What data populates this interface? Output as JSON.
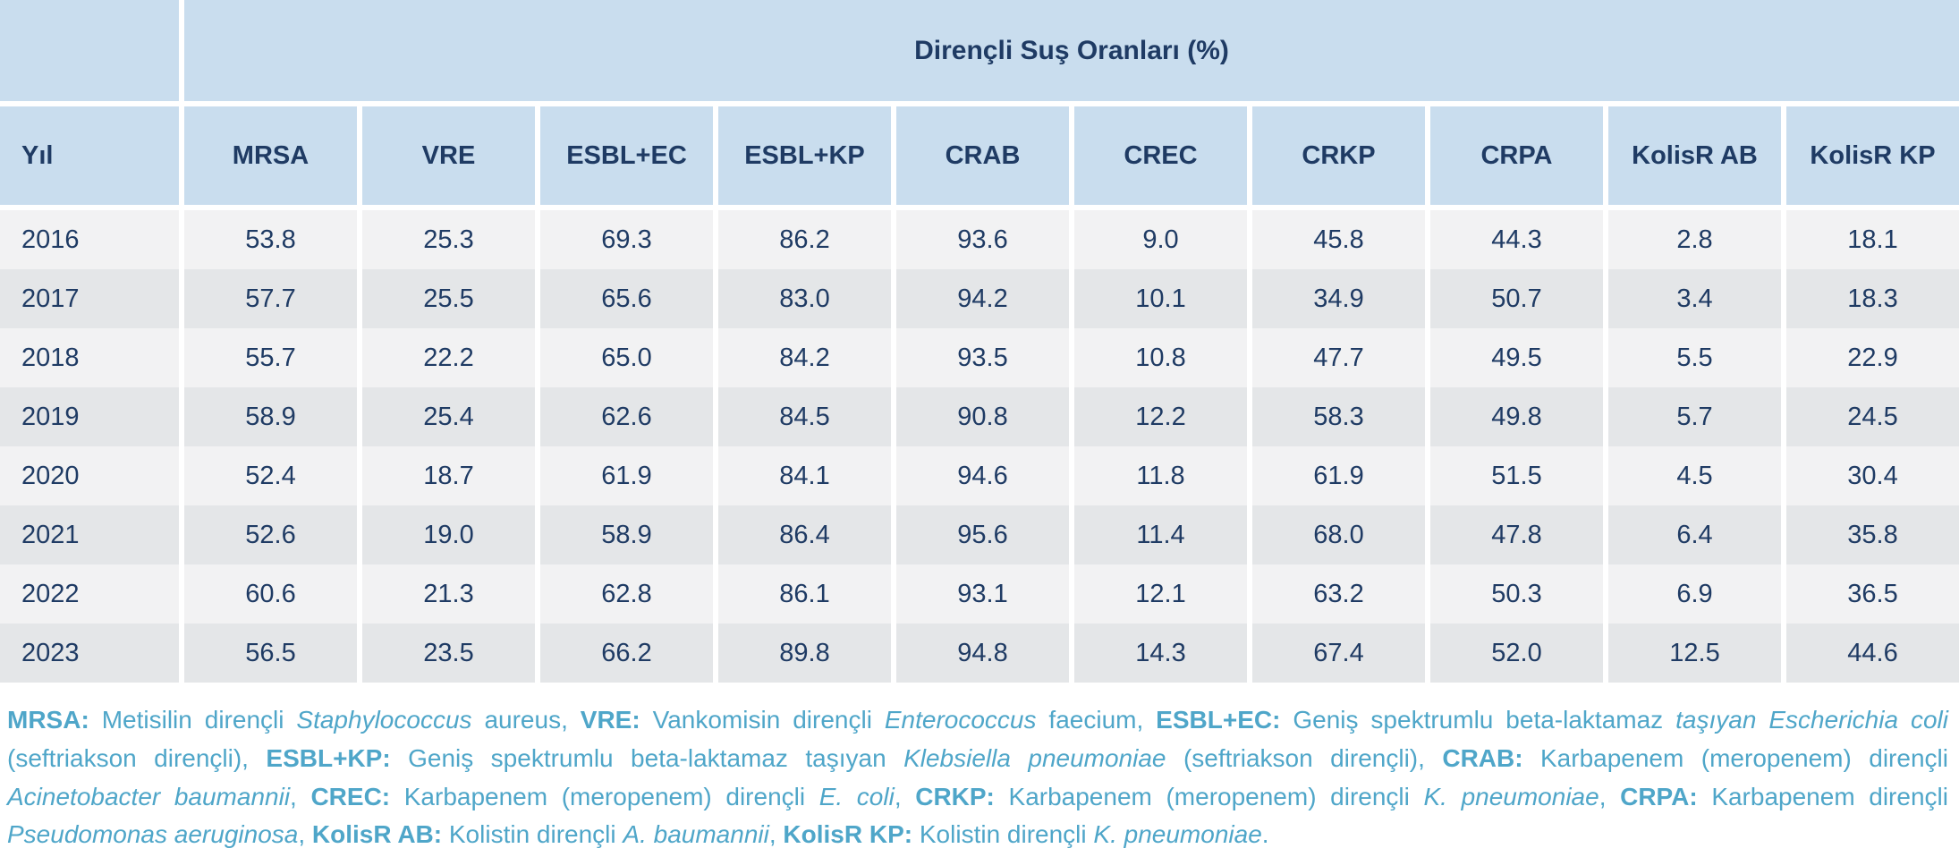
{
  "colors": {
    "header-bg": "#c9ddee",
    "row-odd": "#f2f2f3",
    "row-even": "#e4e6e8",
    "text-navy": "#1f3b64",
    "footnote-blue": "#4fa6c9",
    "page-bg": "#ffffff"
  },
  "chart_data": {
    "type": "table",
    "title": "Dirençli Suş Oranları (%)",
    "columns": [
      "Yıl",
      "MRSA",
      "VRE",
      "ESBL+EC",
      "ESBL+KP",
      "CRAB",
      "CREC",
      "CRKP",
      "CRPA",
      "KolisR AB",
      "KolisR KP"
    ],
    "rows": [
      [
        "2016",
        "53.8",
        "25.3",
        "69.3",
        "86.2",
        "93.6",
        "9.0",
        "45.8",
        "44.3",
        "2.8",
        "18.1"
      ],
      [
        "2017",
        "57.7",
        "25.5",
        "65.6",
        "83.0",
        "94.2",
        "10.1",
        "34.9",
        "50.7",
        "3.4",
        "18.3"
      ],
      [
        "2018",
        "55.7",
        "22.2",
        "65.0",
        "84.2",
        "93.5",
        "10.8",
        "47.7",
        "49.5",
        "5.5",
        "22.9"
      ],
      [
        "2019",
        "58.9",
        "25.4",
        "62.6",
        "84.5",
        "90.8",
        "12.2",
        "58.3",
        "49.8",
        "5.7",
        "24.5"
      ],
      [
        "2020",
        "52.4",
        "18.7",
        "61.9",
        "84.1",
        "94.6",
        "11.8",
        "61.9",
        "51.5",
        "4.5",
        "30.4"
      ],
      [
        "2021",
        "52.6",
        "19.0",
        "58.9",
        "86.4",
        "95.6",
        "11.4",
        "68.0",
        "47.8",
        "6.4",
        "35.8"
      ],
      [
        "2022",
        "60.6",
        "21.3",
        "62.8",
        "86.1",
        "93.1",
        "12.1",
        "63.2",
        "50.3",
        "6.9",
        "36.5"
      ],
      [
        "2023",
        "56.5",
        "23.5",
        "66.2",
        "89.8",
        "94.8",
        "14.3",
        "67.4",
        "52.0",
        "12.5",
        "44.6"
      ]
    ]
  },
  "footnote": {
    "segments": [
      {
        "t": "MRSA:",
        "b": true
      },
      {
        "t": " Metisilin dirençli "
      },
      {
        "t": "Staphylococcus",
        "i": true
      },
      {
        "t": " aureus, "
      },
      {
        "t": "VRE:",
        "b": true
      },
      {
        "t": " Vankomisin dirençli "
      },
      {
        "t": "Enterococcus",
        "i": true
      },
      {
        "t": " faecium, "
      },
      {
        "t": "ESBL+EC:",
        "b": true
      },
      {
        "t": " Geniş spektrumlu beta-laktamaz "
      },
      {
        "t": "taşıyan Escherichia coli",
        "i": true
      },
      {
        "t": " (seftriakson dirençli), "
      },
      {
        "t": "ESBL+KP:",
        "b": true
      },
      {
        "t": " Geniş spektrumlu beta-laktamaz taşıyan "
      },
      {
        "t": "Klebsiella pneumoniae",
        "i": true
      },
      {
        "t": " (seftriakson dirençli), "
      },
      {
        "t": "CRAB:",
        "b": true
      },
      {
        "t": " Karbapenem (meropenem) dirençli "
      },
      {
        "t": "Acinetobacter baumannii",
        "i": true
      },
      {
        "t": ", "
      },
      {
        "t": "CREC:",
        "b": true
      },
      {
        "t": " Karbapenem (meropenem) dirençli "
      },
      {
        "t": "E. coli",
        "i": true
      },
      {
        "t": ", "
      },
      {
        "t": "CRKP:",
        "b": true
      },
      {
        "t": " Karbapenem (meropenem) dirençli "
      },
      {
        "t": "K. pneumoniae",
        "i": true
      },
      {
        "t": ", "
      },
      {
        "t": "CRPA:",
        "b": true
      },
      {
        "t": " Karbapenem dirençli "
      },
      {
        "t": "Pseudomonas aeruginosa",
        "i": true
      },
      {
        "t": ", "
      },
      {
        "t": "KolisR AB:",
        "b": true
      },
      {
        "t": " Kolistin dirençli "
      },
      {
        "t": "A. baumannii",
        "i": true
      },
      {
        "t": ", "
      },
      {
        "t": "KolisR KP:",
        "b": true
      },
      {
        "t": " Kolistin dirençli "
      },
      {
        "t": "K. pneumoniae",
        "i": true
      },
      {
        "t": "."
      }
    ]
  }
}
